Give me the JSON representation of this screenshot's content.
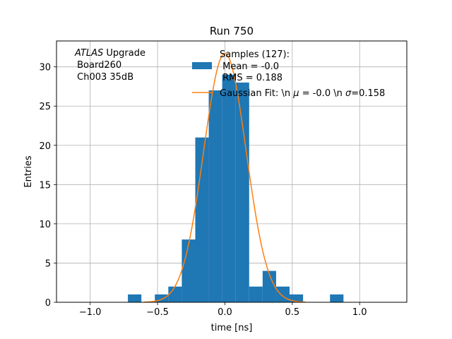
{
  "chart_data": {
    "type": "bar",
    "title": "Run 750",
    "xlabel": "time [ns]",
    "ylabel": "Entries",
    "xlim": [
      -1.25,
      1.35
    ],
    "ylim": [
      0,
      33.3
    ],
    "xticks": [
      -1.0,
      -0.5,
      0.0,
      0.5,
      1.0
    ],
    "xtick_labels": [
      "−1.0",
      "−0.5",
      "0.0",
      "0.5",
      "1.0"
    ],
    "yticks": [
      0,
      5,
      10,
      15,
      20,
      25,
      30
    ],
    "ytick_labels": [
      "0",
      "5",
      "10",
      "15",
      "20",
      "25",
      "30"
    ],
    "grid": true,
    "histogram": {
      "bin_width": 0.1,
      "bins": [
        {
          "x0": -0.72,
          "count": 1
        },
        {
          "x0": -0.52,
          "count": 1
        },
        {
          "x0": -0.42,
          "count": 2
        },
        {
          "x0": -0.32,
          "count": 8
        },
        {
          "x0": -0.22,
          "count": 21
        },
        {
          "x0": -0.12,
          "count": 27
        },
        {
          "x0": -0.02,
          "count": 29
        },
        {
          "x0": 0.08,
          "count": 28
        },
        {
          "x0": 0.18,
          "count": 2
        },
        {
          "x0": 0.28,
          "count": 4
        },
        {
          "x0": 0.38,
          "count": 2
        },
        {
          "x0": 0.48,
          "count": 1
        },
        {
          "x0": 0.78,
          "count": 1
        }
      ]
    },
    "fit": {
      "mu": 0.0,
      "sigma": 0.158,
      "amplitude": 31.7
    },
    "colors": {
      "histogram": "#1f77b4",
      "fit": "#ff7f0e",
      "grid": "#b0b0b0"
    },
    "annotation": {
      "italic": "ATLAS",
      "line1_rest": " Upgrade",
      "line2": " Board260",
      "line3": " Ch003 35dB"
    },
    "legend": {
      "placement": "top-right",
      "hist_line1": "Samples (127):",
      "hist_line2": " Mean = -0.0",
      "hist_line3": " RMS = 0.188",
      "fit_pre": "Gaussian Fit: \\n ",
      "fit_mu": "μ",
      "fit_mid": " = -0.0 \\n ",
      "fit_sigma": "σ",
      "fit_post": "=0.158"
    }
  }
}
